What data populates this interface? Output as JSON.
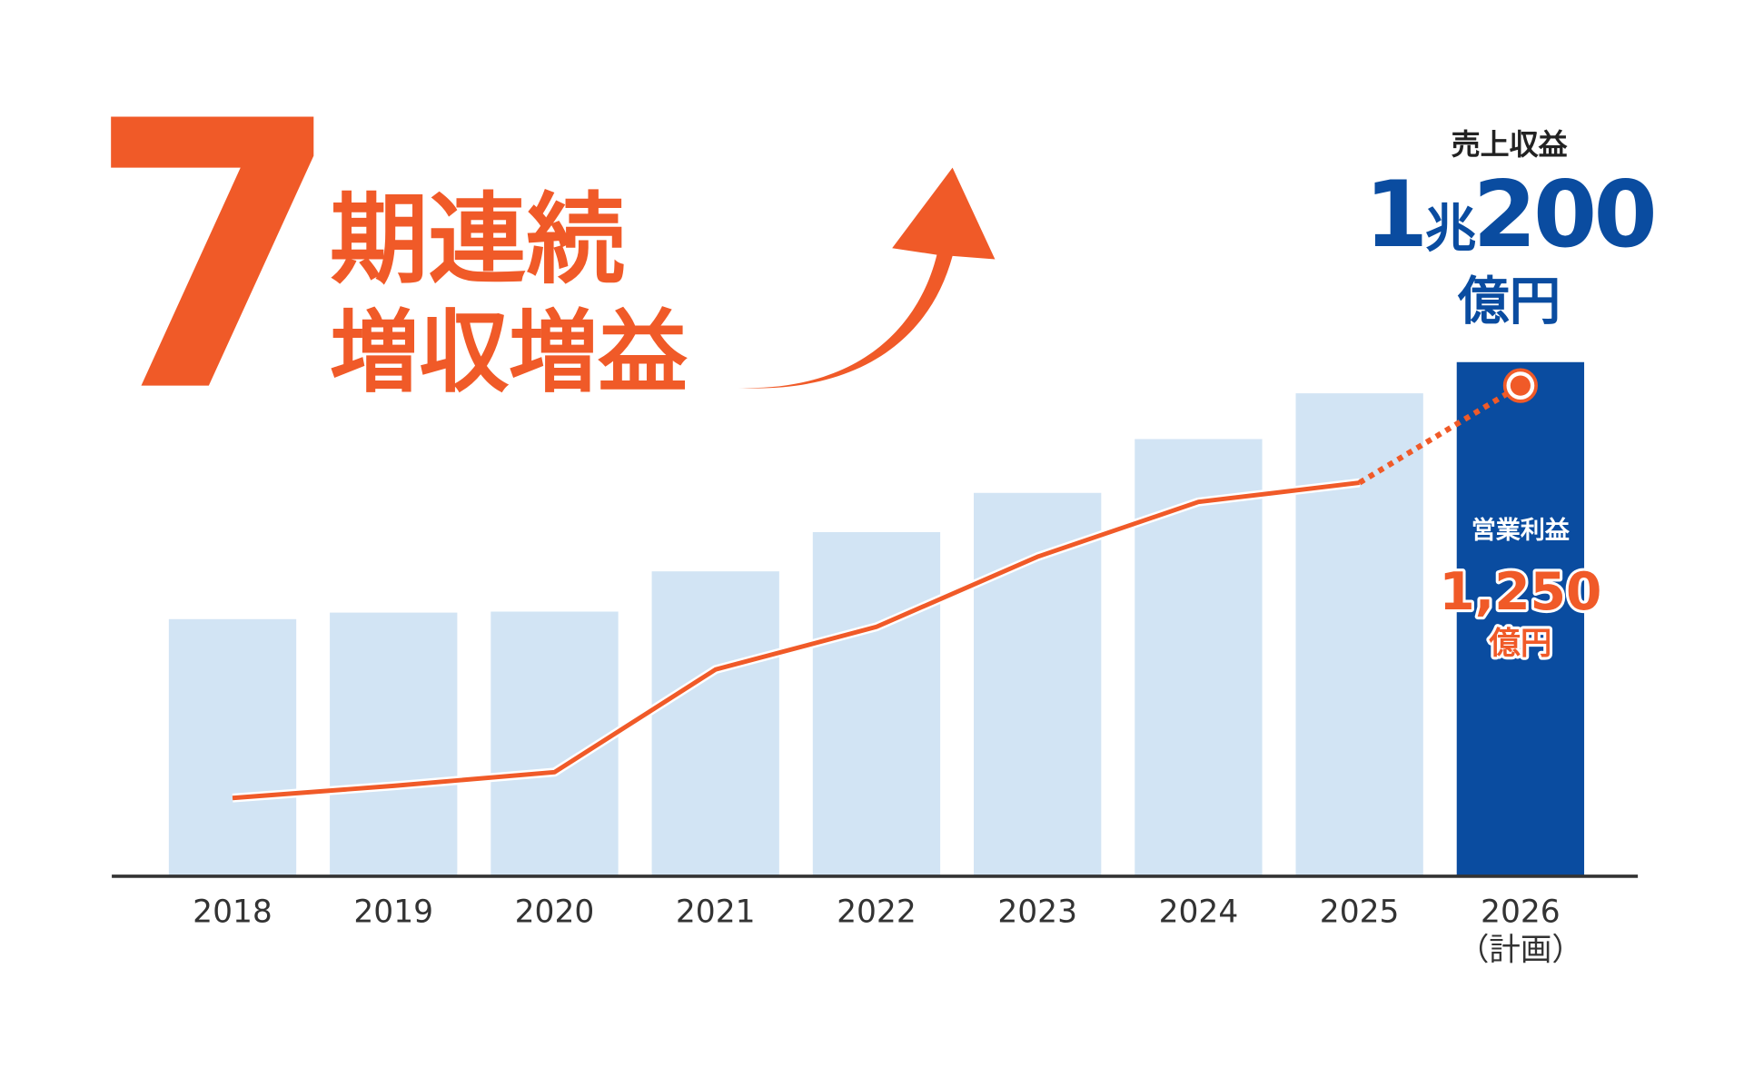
{
  "chart_data": {
    "type": "bar",
    "headline": {
      "number": "7",
      "line1": "期連続",
      "line2": "増収増益"
    },
    "categories": [
      "2018",
      "2019",
      "2020",
      "2021",
      "2022",
      "2023",
      "2024",
      "2025",
      "2026（計画）"
    ],
    "series": [
      {
        "name": "売上収益",
        "type": "bar",
        "colors": [
          "#d2e4f4",
          "#d2e4f4",
          "#d2e4f4",
          "#d2e4f4",
          "#d2e4f4",
          "#d2e4f4",
          "#d2e4f4",
          "#d2e4f4",
          "#0a4ca0"
        ],
        "values": [
          5090,
          5220,
          5240,
          6040,
          6820,
          7600,
          8670,
          9580,
          10200
        ],
        "value_labels": [
          null,
          null,
          null,
          null,
          null,
          null,
          null,
          null,
          "1兆200億円"
        ]
      },
      {
        "name": "営業利益",
        "type": "line",
        "color": "#f05a28",
        "values": [
          197,
          228,
          263,
          525,
          634,
          813,
          953,
          1002,
          1250
        ],
        "value_labels": [
          null,
          null,
          null,
          null,
          null,
          null,
          null,
          null,
          "1,250億円"
        ]
      }
    ]
  }
}
